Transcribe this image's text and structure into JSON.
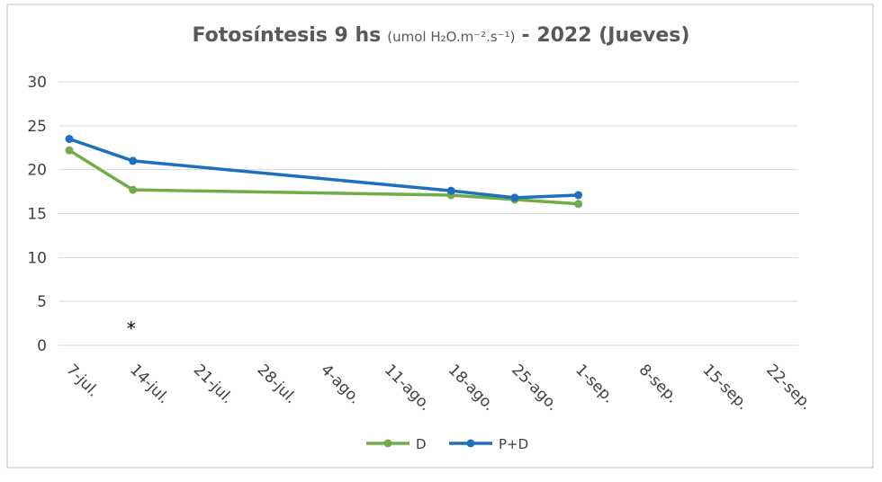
{
  "chart_data": {
    "type": "line",
    "title": "Fotosíntesis 9 hs",
    "title_units": "(umol H₂O.m⁻².s⁻¹)",
    "title_suffix": "- 2022 (Jueves)",
    "categories": [
      "7-jul.",
      "14-jul.",
      "21-jul.",
      "28-jul.",
      "4-ago.",
      "11-ago.",
      "18-ago.",
      "25-ago.",
      "1-sep.",
      "8-sep.",
      "15-sep.",
      "22-sep."
    ],
    "series": [
      {
        "name": "D",
        "color": "#70ad47",
        "x": [
          "7-jul.",
          "14-jul.",
          "18-ago.",
          "25-ago.",
          "1-sep."
        ],
        "values": [
          22.2,
          17.7,
          17.1,
          16.6,
          16.1
        ]
      },
      {
        "name": "P+D",
        "color": "#1f6fbf",
        "x": [
          "7-jul.",
          "14-jul.",
          "18-ago.",
          "25-ago.",
          "1-sep."
        ],
        "values": [
          23.5,
          21.0,
          17.6,
          16.8,
          17.1
        ]
      }
    ],
    "annotations": [
      {
        "text": "*",
        "x": "14-jul.",
        "y": 2
      }
    ],
    "ylim": [
      0,
      30
    ],
    "yticks": [
      0,
      5,
      10,
      15,
      20,
      25,
      30
    ],
    "grid": true,
    "legend": "bottom"
  }
}
